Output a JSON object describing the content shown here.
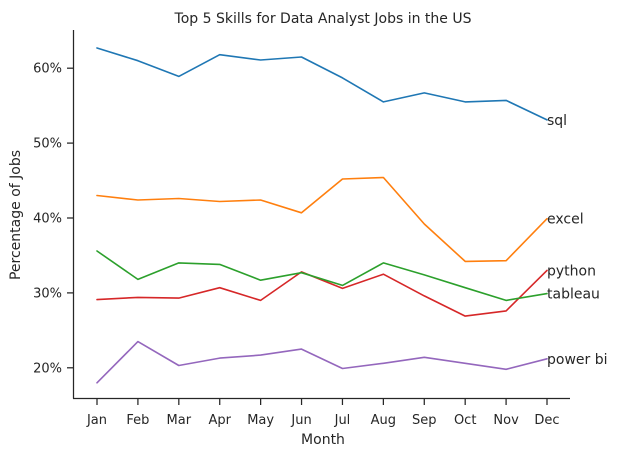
{
  "chart_data": {
    "type": "line",
    "title": "Top 5 Skills for Data Analyst Jobs in the US",
    "xlabel": "Month",
    "ylabel": "Percentage of Jobs",
    "categories": [
      "Jan",
      "Feb",
      "Mar",
      "Apr",
      "May",
      "Jun",
      "Jul",
      "Aug",
      "Sep",
      "Oct",
      "Nov",
      "Dec"
    ],
    "ylim": [
      15.9,
      65.1
    ],
    "yticks": [
      20,
      30,
      40,
      50,
      60
    ],
    "ytick_labels": [
      "20%",
      "30%",
      "40%",
      "50%",
      "60%"
    ],
    "grid": false,
    "series": [
      {
        "name": "sql",
        "color": "#1f77b4",
        "values": [
          62.7,
          61.0,
          58.9,
          61.8,
          61.1,
          61.5,
          58.7,
          55.5,
          56.7,
          55.5,
          55.7,
          53.1
        ]
      },
      {
        "name": "excel",
        "color": "#ff7f0e",
        "values": [
          43.0,
          42.4,
          42.6,
          42.2,
          42.4,
          40.7,
          45.2,
          45.4,
          39.2,
          34.2,
          34.3,
          39.9
        ]
      },
      {
        "name": "python",
        "color": "#d62728",
        "values": [
          29.1,
          29.4,
          29.3,
          30.7,
          29.0,
          32.8,
          30.6,
          32.5,
          29.6,
          26.9,
          27.6,
          33.0
        ]
      },
      {
        "name": "tableau",
        "color": "#2ca02c",
        "values": [
          35.6,
          31.8,
          34.0,
          33.8,
          31.7,
          32.7,
          31.0,
          34.0,
          32.4,
          30.7,
          29.0,
          29.9
        ]
      },
      {
        "name": "power bi",
        "color": "#9467bd",
        "values": [
          18.0,
          23.5,
          20.3,
          21.3,
          21.7,
          22.5,
          19.9,
          20.6,
          21.4,
          20.6,
          19.8,
          21.2
        ]
      }
    ]
  }
}
